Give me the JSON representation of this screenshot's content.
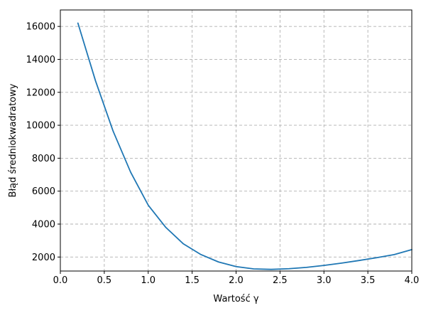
{
  "chart_data": {
    "type": "line",
    "title": "",
    "xlabel": "Wartość γ",
    "ylabel": "Błąd średniokwadratowy",
    "xlim": [
      0.0,
      4.0
    ],
    "ylim": [
      1150,
      17000
    ],
    "xticks": [
      0.0,
      0.5,
      1.0,
      1.5,
      2.0,
      2.5,
      3.0,
      3.5,
      4.0
    ],
    "xtick_labels": [
      "0.0",
      "0.5",
      "1.0",
      "1.5",
      "2.0",
      "2.5",
      "3.0",
      "3.5",
      "4.0"
    ],
    "yticks": [
      2000,
      4000,
      6000,
      8000,
      10000,
      12000,
      14000,
      16000
    ],
    "ytick_labels": [
      "2000",
      "4000",
      "6000",
      "8000",
      "10000",
      "12000",
      "14000",
      "16000"
    ],
    "grid": true,
    "grid_style": "dashed",
    "legend": "none",
    "series": [
      {
        "color": "#1f77b4",
        "x": [
          0.2,
          0.4,
          0.6,
          0.8,
          1.0,
          1.2,
          1.4,
          1.6,
          1.8,
          2.0,
          2.2,
          2.4,
          2.6,
          2.8,
          3.0,
          3.2,
          3.4,
          3.6,
          3.8,
          4.0
        ],
        "y": [
          16200,
          12700,
          9650,
          7150,
          5150,
          3800,
          2800,
          2150,
          1700,
          1420,
          1280,
          1250,
          1290,
          1370,
          1490,
          1630,
          1790,
          1960,
          2150,
          2450
        ]
      }
    ]
  }
}
